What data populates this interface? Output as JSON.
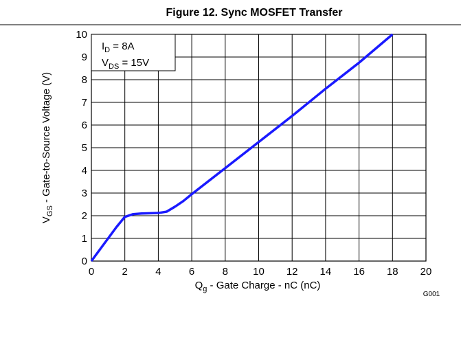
{
  "chart_data": {
    "type": "line",
    "title": "Figure 12. Sync MOSFET Transfer",
    "xlabel": {
      "text": "Q",
      "sub": "g",
      "rest": " - Gate Charge - nC (nC)"
    },
    "ylabel": {
      "text": "V",
      "sub": "GS",
      "rest": " - Gate-to-Source Voltage (V)"
    },
    "annotations": [
      {
        "text": "I",
        "sub": "D",
        "rest": " = 8A"
      },
      {
        "text": "V",
        "sub": "DS",
        "rest": " = 15V"
      }
    ],
    "note": "G001",
    "x": [
      0,
      0.5,
      1,
      1.5,
      2,
      2.5,
      3,
      4,
      4.5,
      5,
      5.5,
      6,
      8,
      10,
      12,
      14,
      16,
      18
    ],
    "values": [
      0,
      0.5,
      1,
      1.5,
      1.95,
      2.07,
      2.1,
      2.12,
      2.18,
      2.4,
      2.65,
      2.95,
      4.1,
      5.25,
      6.4,
      7.6,
      8.75,
      10
    ],
    "color": "#1a1aff",
    "xlim": [
      0,
      20
    ],
    "xticks": [
      0,
      2,
      4,
      6,
      8,
      10,
      12,
      14,
      16,
      18,
      20
    ],
    "ylim": [
      0,
      10
    ],
    "yticks": [
      0,
      1,
      2,
      3,
      4,
      5,
      6,
      7,
      8,
      9,
      10
    ],
    "grid": true
  }
}
